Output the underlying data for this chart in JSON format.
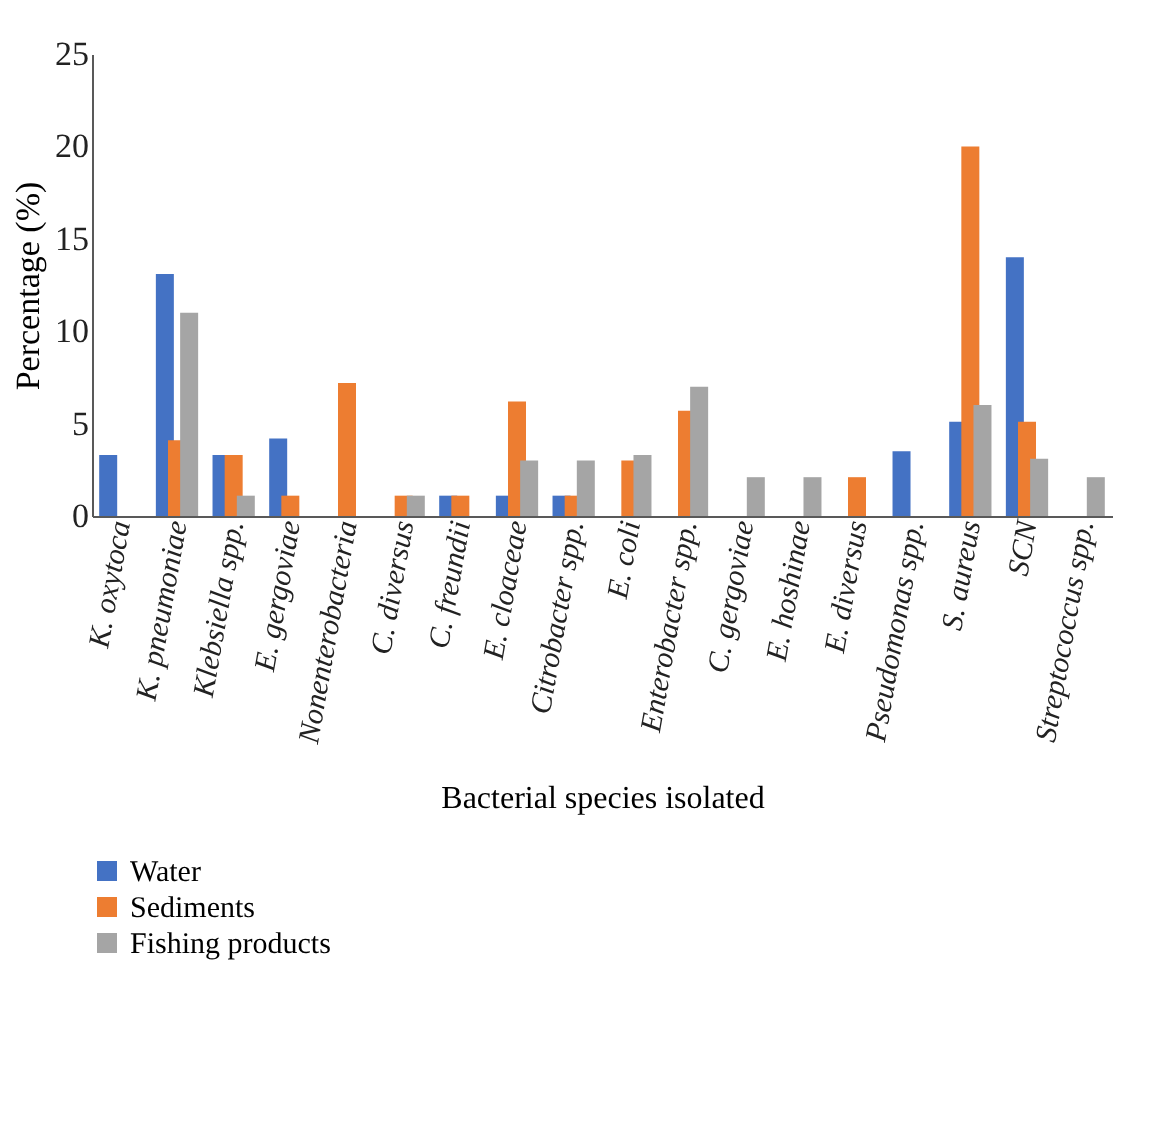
{
  "chart_data": {
    "type": "bar",
    "xlabel": "Bacterial species isolated",
    "ylabel": "Percentage (%)",
    "categories": [
      "K. oxytoca",
      "K. pneumoniae",
      "Klebsiella spp.",
      "E. gergoviae",
      "Nonenterobacteria",
      "C. diversus",
      "C. freundii",
      "E. cloaceae",
      "Citrobacter spp.",
      "E. coli",
      "Enterobacter spp.",
      "C. gergoviae",
      "E. hoshinae",
      "E. diversus",
      "Pseudomonas spp.",
      "S. aureus",
      "SCN",
      "Streptococcus spp."
    ],
    "series": [
      {
        "name": "Water",
        "color": "#4472c4",
        "values": [
          3.3,
          13.1,
          3.3,
          4.2,
          0,
          0,
          1.1,
          1.1,
          1.1,
          0,
          0,
          0,
          0,
          0,
          3.5,
          5.1,
          14,
          0
        ]
      },
      {
        "name": "Sediments",
        "color": "#ed7d31",
        "values": [
          0,
          4.1,
          3.3,
          1.1,
          7.2,
          1.1,
          1.1,
          6.2,
          1.1,
          3,
          5.7,
          0,
          0,
          2.1,
          0,
          20,
          5.1,
          0
        ]
      },
      {
        "name": "Fishing products",
        "color": "#a5a5a5",
        "values": [
          0,
          11,
          1.1,
          0,
          0,
          1.1,
          0,
          3,
          3,
          3.3,
          7,
          2.1,
          2.1,
          0,
          0,
          6,
          3.1,
          2.1
        ]
      }
    ],
    "ylim": [
      0,
      25
    ],
    "yticks": [
      0,
      5,
      10,
      15,
      20,
      25
    ],
    "grid": false,
    "legend": "bottom left"
  }
}
